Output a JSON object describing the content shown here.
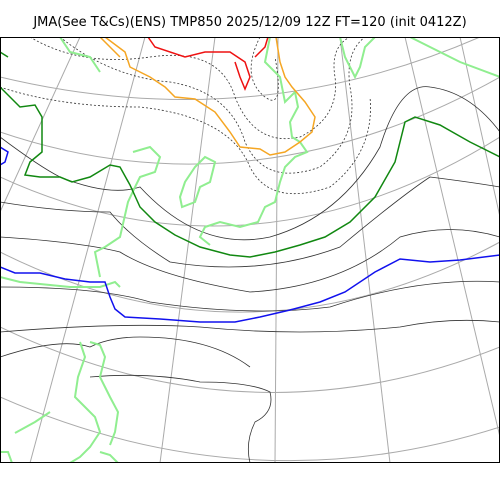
{
  "title": "JMA(See T&Cs)(ENS) TMP850 2025/12/09 12Z FT=120 (init 0412Z)",
  "colors": {
    "graticule": "#aaaaaa",
    "coastline": "#90ee90",
    "contour": "#333333",
    "isotherm_red": "#ee1111",
    "isotherm_orange": "#f5a623",
    "isotherm_green": "#118811",
    "isotherm_blue": "#1111ee",
    "frame": "#000000"
  }
}
